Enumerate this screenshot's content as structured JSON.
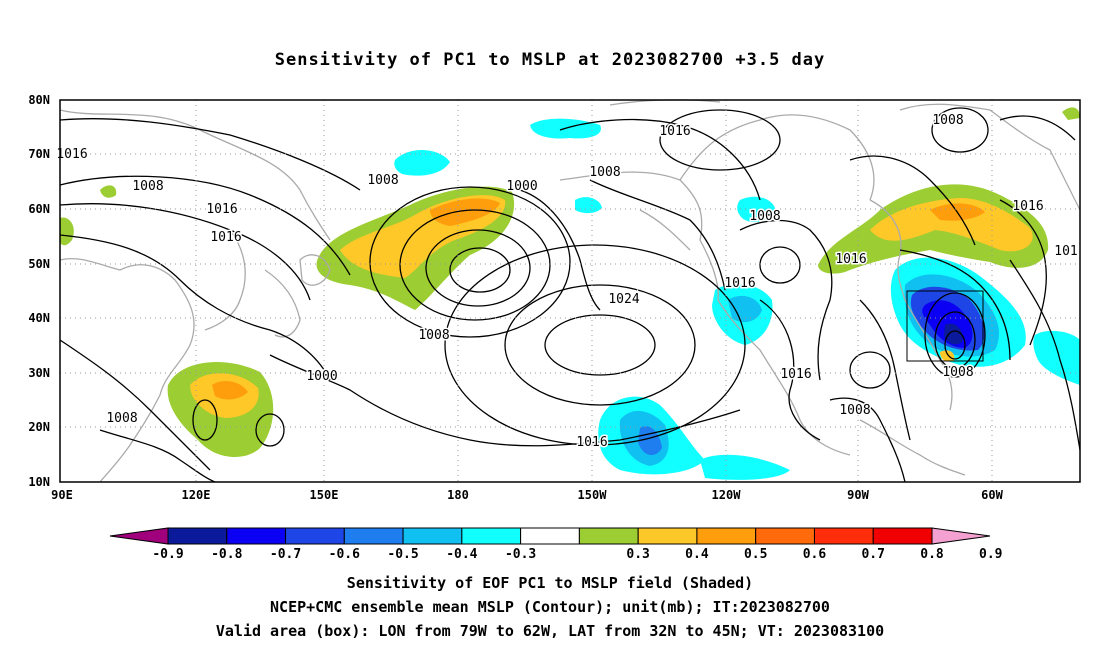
{
  "title": "Sensitivity of PC1 to MSLP at 2023082700 +3.5 day",
  "lat_labels": [
    "80N",
    "70N",
    "60N",
    "50N",
    "40N",
    "30N",
    "20N",
    "10N"
  ],
  "lon_labels": [
    "90E",
    "120E",
    "150E",
    "180",
    "150W",
    "120W",
    "90W",
    "60W"
  ],
  "contour_labels": [
    "1016",
    "1008",
    "1008",
    "1008",
    "1016",
    "1016",
    "1000",
    "1008",
    "1024",
    "1016",
    "1008",
    "1016",
    "1016",
    "1000",
    "1008",
    "1016",
    "101",
    "1008",
    "1008",
    "1016",
    "1016",
    "1008"
  ],
  "colorbar": {
    "labels": [
      "-0.9",
      "-0.8",
      "-0.7",
      "-0.6",
      "-0.5",
      "-0.4",
      "-0.3",
      "0.3",
      "0.4",
      "0.5",
      "0.6",
      "0.7",
      "0.8",
      "0.9"
    ],
    "colors": [
      "#a0007c",
      "#0a1a9a",
      "#0b00f4",
      "#1e46e6",
      "#1e7ef0",
      "#10c0f0",
      "#12ffff",
      "#ffffff",
      "#9ccd32",
      "#ffc829",
      "#ff9e0c",
      "#ff6a0a",
      "#ff2d0a",
      "#f00000",
      "#f4a0d0"
    ]
  },
  "captions": [
    "Sensitivity of EOF PC1 to MSLP field (Shaded)",
    "NCEP+CMC ensemble mean MSLP (Contour); unit(mb); IT:2023082700",
    "Valid area (box): LON from 79W to 62W, LAT from 32N to 45N; VT: 2023083100"
  ]
}
